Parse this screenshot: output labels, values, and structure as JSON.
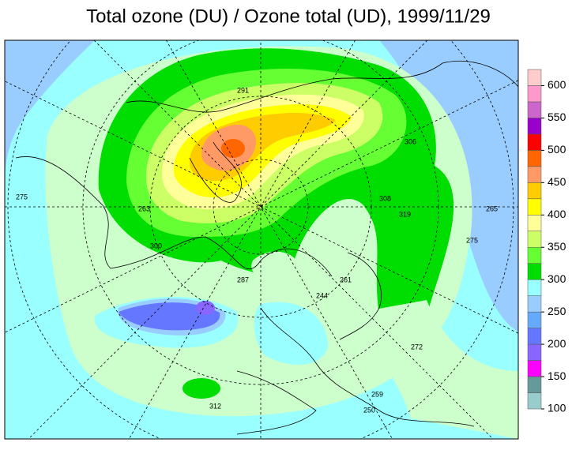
{
  "title": "Total ozone (DU) / Ozone total (UD), 1999/11/29",
  "colorbar": {
    "bins": [
      100,
      125,
      150,
      175,
      200,
      225,
      250,
      275,
      300,
      325,
      350,
      375,
      400,
      425,
      450,
      475,
      500,
      525,
      550,
      575,
      600,
      625
    ],
    "colors": [
      "#99cccc",
      "#669999",
      "#ff00ff",
      "#8866ff",
      "#6677ff",
      "#66aaff",
      "#99ccff",
      "#99ffff",
      "#00dd00",
      "#66ff33",
      "#ccff66",
      "#ffff99",
      "#ffff00",
      "#ffcc00",
      "#ff9966",
      "#ff6600",
      "#ff0000",
      "#9900cc",
      "#cc66cc",
      "#ff99cc",
      "#ffcccc"
    ],
    "ticks": [
      100,
      150,
      200,
      250,
      300,
      350,
      400,
      450,
      500,
      550,
      600
    ]
  },
  "contour_labels": [
    "275",
    "263",
    "287",
    "300",
    "308",
    "319",
    "306",
    "265",
    "275",
    "272",
    "261",
    "259",
    "250",
    "312",
    "291",
    "244"
  ]
}
